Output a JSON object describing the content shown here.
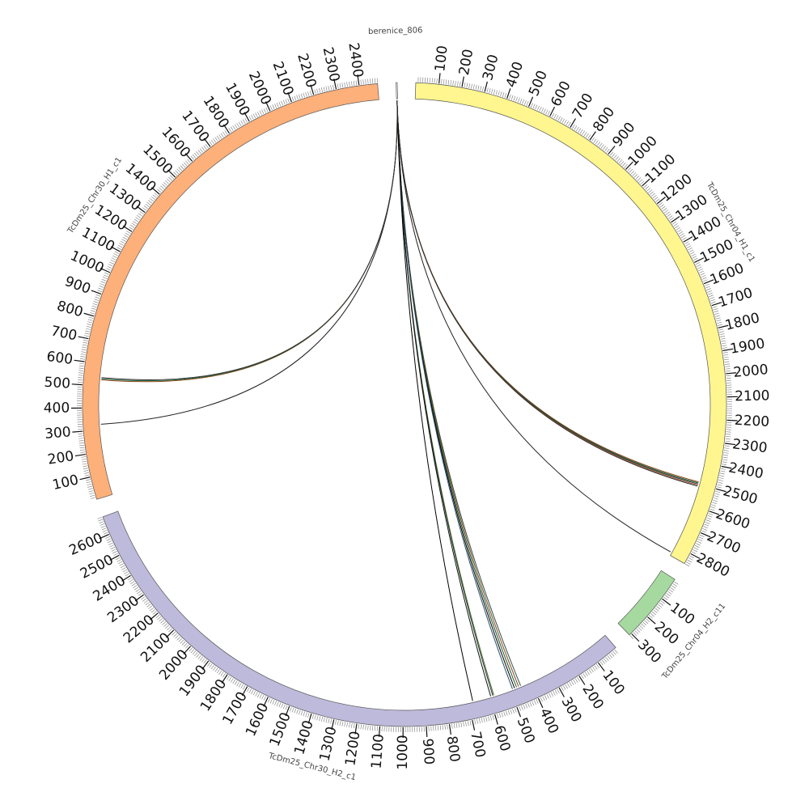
{
  "figure": {
    "type": "circos",
    "tick_step": 100,
    "contigs": [
      {
        "name": "berenice_806",
        "length": 5,
        "color": "#ffffff",
        "show_ticks": false
      },
      {
        "name": "TcDm25_Chr04_H1_c1",
        "length": 2850,
        "color": "#fff68f",
        "show_ticks": true
      },
      {
        "name": "TcDm25_Chr04_H2_c11",
        "length": 310,
        "color": "#a6d9a0",
        "show_ticks": true
      },
      {
        "name": "TcDm25_Chr30_H2_c1",
        "length": 2680,
        "color": "#bebadb",
        "show_ticks": true
      },
      {
        "name": "TcDm25_Chr30_H1_c1",
        "length": 2480,
        "color": "#fdb07a",
        "show_ticks": true
      }
    ],
    "links": [
      {
        "from": "berenice_806",
        "to": "TcDm25_Chr04_H1_c1",
        "to_pos": 2490,
        "color": "#8b4513"
      },
      {
        "from": "berenice_806",
        "to": "TcDm25_Chr04_H1_c1",
        "to_pos": 2495,
        "color": "#1a5e3a"
      },
      {
        "from": "berenice_806",
        "to": "TcDm25_Chr04_H1_c1",
        "to_pos": 2500,
        "color": "#333333"
      },
      {
        "from": "berenice_806",
        "to": "TcDm25_Chr04_H1_c1",
        "to_pos": 2505,
        "color": "#a0522d"
      },
      {
        "from": "berenice_806",
        "to": "TcDm25_Chr04_H1_c1",
        "to_pos": 2510,
        "color": "#2e2e2e"
      },
      {
        "from": "berenice_806",
        "to": "TcDm25_Chr04_H1_c1",
        "to_pos": 2835,
        "color": "#222222"
      },
      {
        "from": "berenice_806",
        "to": "TcDm25_Chr30_H2_c1",
        "to_pos": 450,
        "color": "#2f4f4f"
      },
      {
        "from": "berenice_806",
        "to": "TcDm25_Chr30_H2_c1",
        "to_pos": 460,
        "color": "#8b4513"
      },
      {
        "from": "berenice_806",
        "to": "TcDm25_Chr30_H2_c1",
        "to_pos": 470,
        "color": "#1a5e3a"
      },
      {
        "from": "berenice_806",
        "to": "TcDm25_Chr30_H2_c1",
        "to_pos": 480,
        "color": "#000000"
      },
      {
        "from": "berenice_806",
        "to": "TcDm25_Chr30_H2_c1",
        "to_pos": 490,
        "color": "#2a4d69"
      },
      {
        "from": "berenice_806",
        "to": "TcDm25_Chr30_H2_c1",
        "to_pos": 580,
        "color": "#556b2f"
      },
      {
        "from": "berenice_806",
        "to": "TcDm25_Chr30_H2_c1",
        "to_pos": 585,
        "color": "#1f3b2d"
      },
      {
        "from": "berenice_806",
        "to": "TcDm25_Chr30_H2_c1",
        "to_pos": 595,
        "color": "#111111"
      },
      {
        "from": "berenice_806",
        "to": "TcDm25_Chr30_H2_c1",
        "to_pos": 680,
        "color": "#000000"
      },
      {
        "from": "berenice_806",
        "to": "TcDm25_Chr30_H1_c1",
        "to_pos": 325,
        "color": "#222222"
      },
      {
        "from": "berenice_806",
        "to": "TcDm25_Chr30_H1_c1",
        "to_pos": 528,
        "color": "#8b4513"
      },
      {
        "from": "berenice_806",
        "to": "TcDm25_Chr30_H1_c1",
        "to_pos": 533,
        "color": "#1a5e3a"
      },
      {
        "from": "berenice_806",
        "to": "TcDm25_Chr30_H1_c1",
        "to_pos": 538,
        "color": "#333333"
      }
    ]
  }
}
